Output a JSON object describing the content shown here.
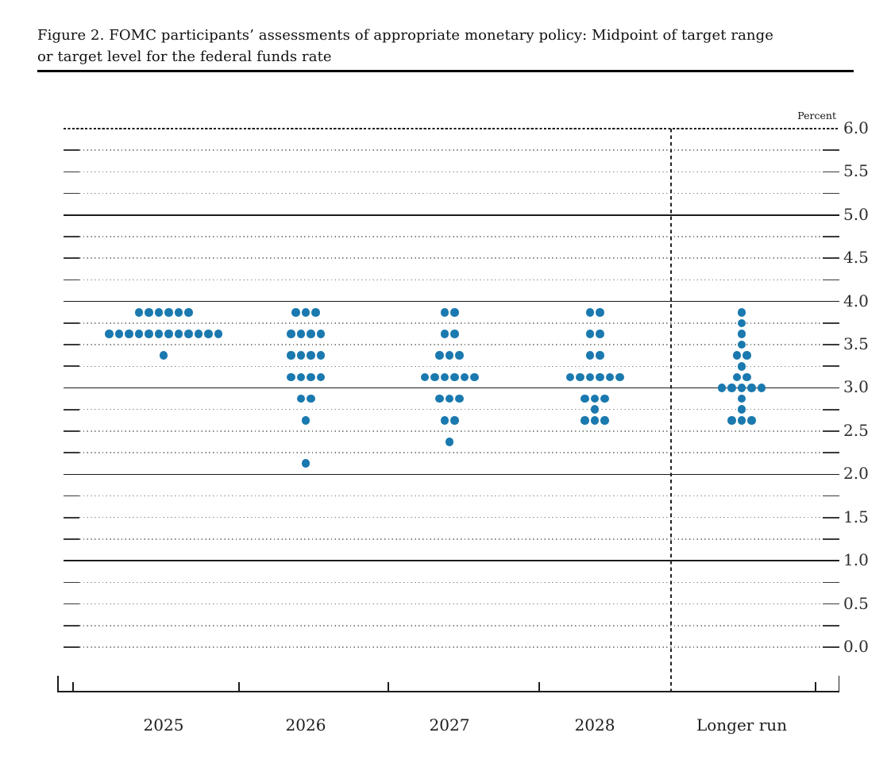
{
  "header": {
    "title_line1": "Figure 2. FOMC participants’ assessments of appropriate monetary policy: Midpoint of target range",
    "title_line2": "or target level for the federal funds rate"
  },
  "chart_data": {
    "type": "scatter",
    "title": "Figure 2. FOMC participants’ assessments of appropriate monetary policy: Midpoint of target range or target level for the federal funds rate",
    "ylabel": "Percent",
    "xlabel": "",
    "ylim": [
      0.0,
      6.0
    ],
    "y_label_step": 0.5,
    "y_grid_step": 0.25,
    "y_tick_labels": [
      "6.0",
      "5.5",
      "5.0",
      "4.5",
      "4.0",
      "3.5",
      "3.0",
      "2.5",
      "2.0",
      "1.5",
      "1.0",
      "0.5",
      "0.0"
    ],
    "solid_gridlines": [
      1.0,
      2.0,
      3.0,
      4.0,
      5.0
    ],
    "dashed_gridlines": [
      6.0
    ],
    "grid": "on",
    "legend_position": "none",
    "categories": [
      "2025",
      "2026",
      "2027",
      "2028",
      "Longer run"
    ],
    "participants_per_column": 19,
    "series": [
      {
        "name": "2025",
        "dots": [
          {
            "rate": 3.875,
            "count": 6
          },
          {
            "rate": 3.625,
            "count": 12
          },
          {
            "rate": 3.375,
            "count": 1
          }
        ]
      },
      {
        "name": "2026",
        "dots": [
          {
            "rate": 3.875,
            "count": 3
          },
          {
            "rate": 3.625,
            "count": 4
          },
          {
            "rate": 3.375,
            "count": 4
          },
          {
            "rate": 3.125,
            "count": 4
          },
          {
            "rate": 2.875,
            "count": 2
          },
          {
            "rate": 2.625,
            "count": 1
          },
          {
            "rate": 2.125,
            "count": 1
          }
        ]
      },
      {
        "name": "2027",
        "dots": [
          {
            "rate": 3.875,
            "count": 2
          },
          {
            "rate": 3.625,
            "count": 2
          },
          {
            "rate": 3.375,
            "count": 3
          },
          {
            "rate": 3.125,
            "count": 6
          },
          {
            "rate": 2.875,
            "count": 3
          },
          {
            "rate": 2.625,
            "count": 2
          },
          {
            "rate": 2.375,
            "count": 1
          }
        ]
      },
      {
        "name": "2028",
        "dots": [
          {
            "rate": 3.875,
            "count": 2
          },
          {
            "rate": 3.625,
            "count": 2
          },
          {
            "rate": 3.375,
            "count": 2
          },
          {
            "rate": 3.125,
            "count": 6
          },
          {
            "rate": 2.875,
            "count": 3
          },
          {
            "rate": 2.75,
            "count": 1
          },
          {
            "rate": 2.625,
            "count": 3
          }
        ]
      },
      {
        "name": "Longer run",
        "dots": [
          {
            "rate": 3.875,
            "count": 1
          },
          {
            "rate": 3.75,
            "count": 1
          },
          {
            "rate": 3.625,
            "count": 1
          },
          {
            "rate": 3.5,
            "count": 1
          },
          {
            "rate": 3.375,
            "count": 2
          },
          {
            "rate": 3.25,
            "count": 1
          },
          {
            "rate": 3.125,
            "count": 2
          },
          {
            "rate": 3.0,
            "count": 5
          },
          {
            "rate": 2.875,
            "count": 1
          },
          {
            "rate": 2.75,
            "count": 1
          },
          {
            "rate": 2.625,
            "count": 3
          }
        ]
      }
    ],
    "dot_color": "#1A79AF",
    "grid_dotted_color": "#858585",
    "grid_solid_color": "#1b1b1b",
    "separator_after_category": "2028"
  }
}
